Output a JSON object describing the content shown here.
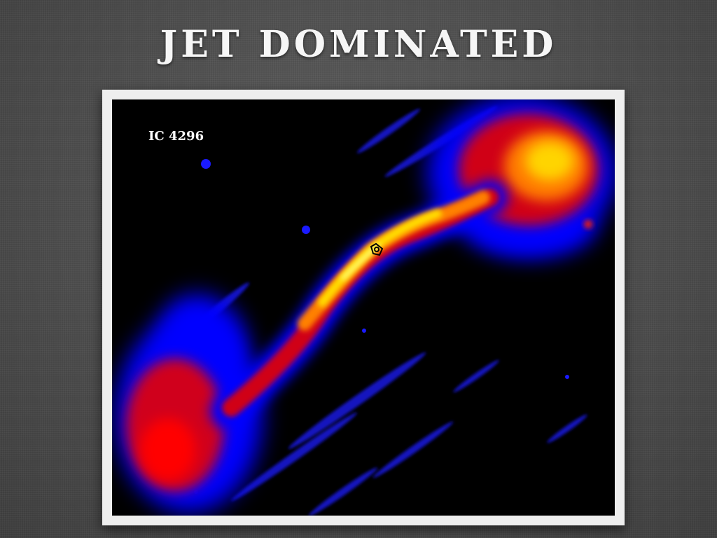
{
  "slide": {
    "title": "JET DOMINATED"
  },
  "image": {
    "object_label": "IC 4296",
    "colormap": [
      "#0000ff",
      "#ff0000",
      "#ffd400",
      "#ffff80"
    ]
  }
}
